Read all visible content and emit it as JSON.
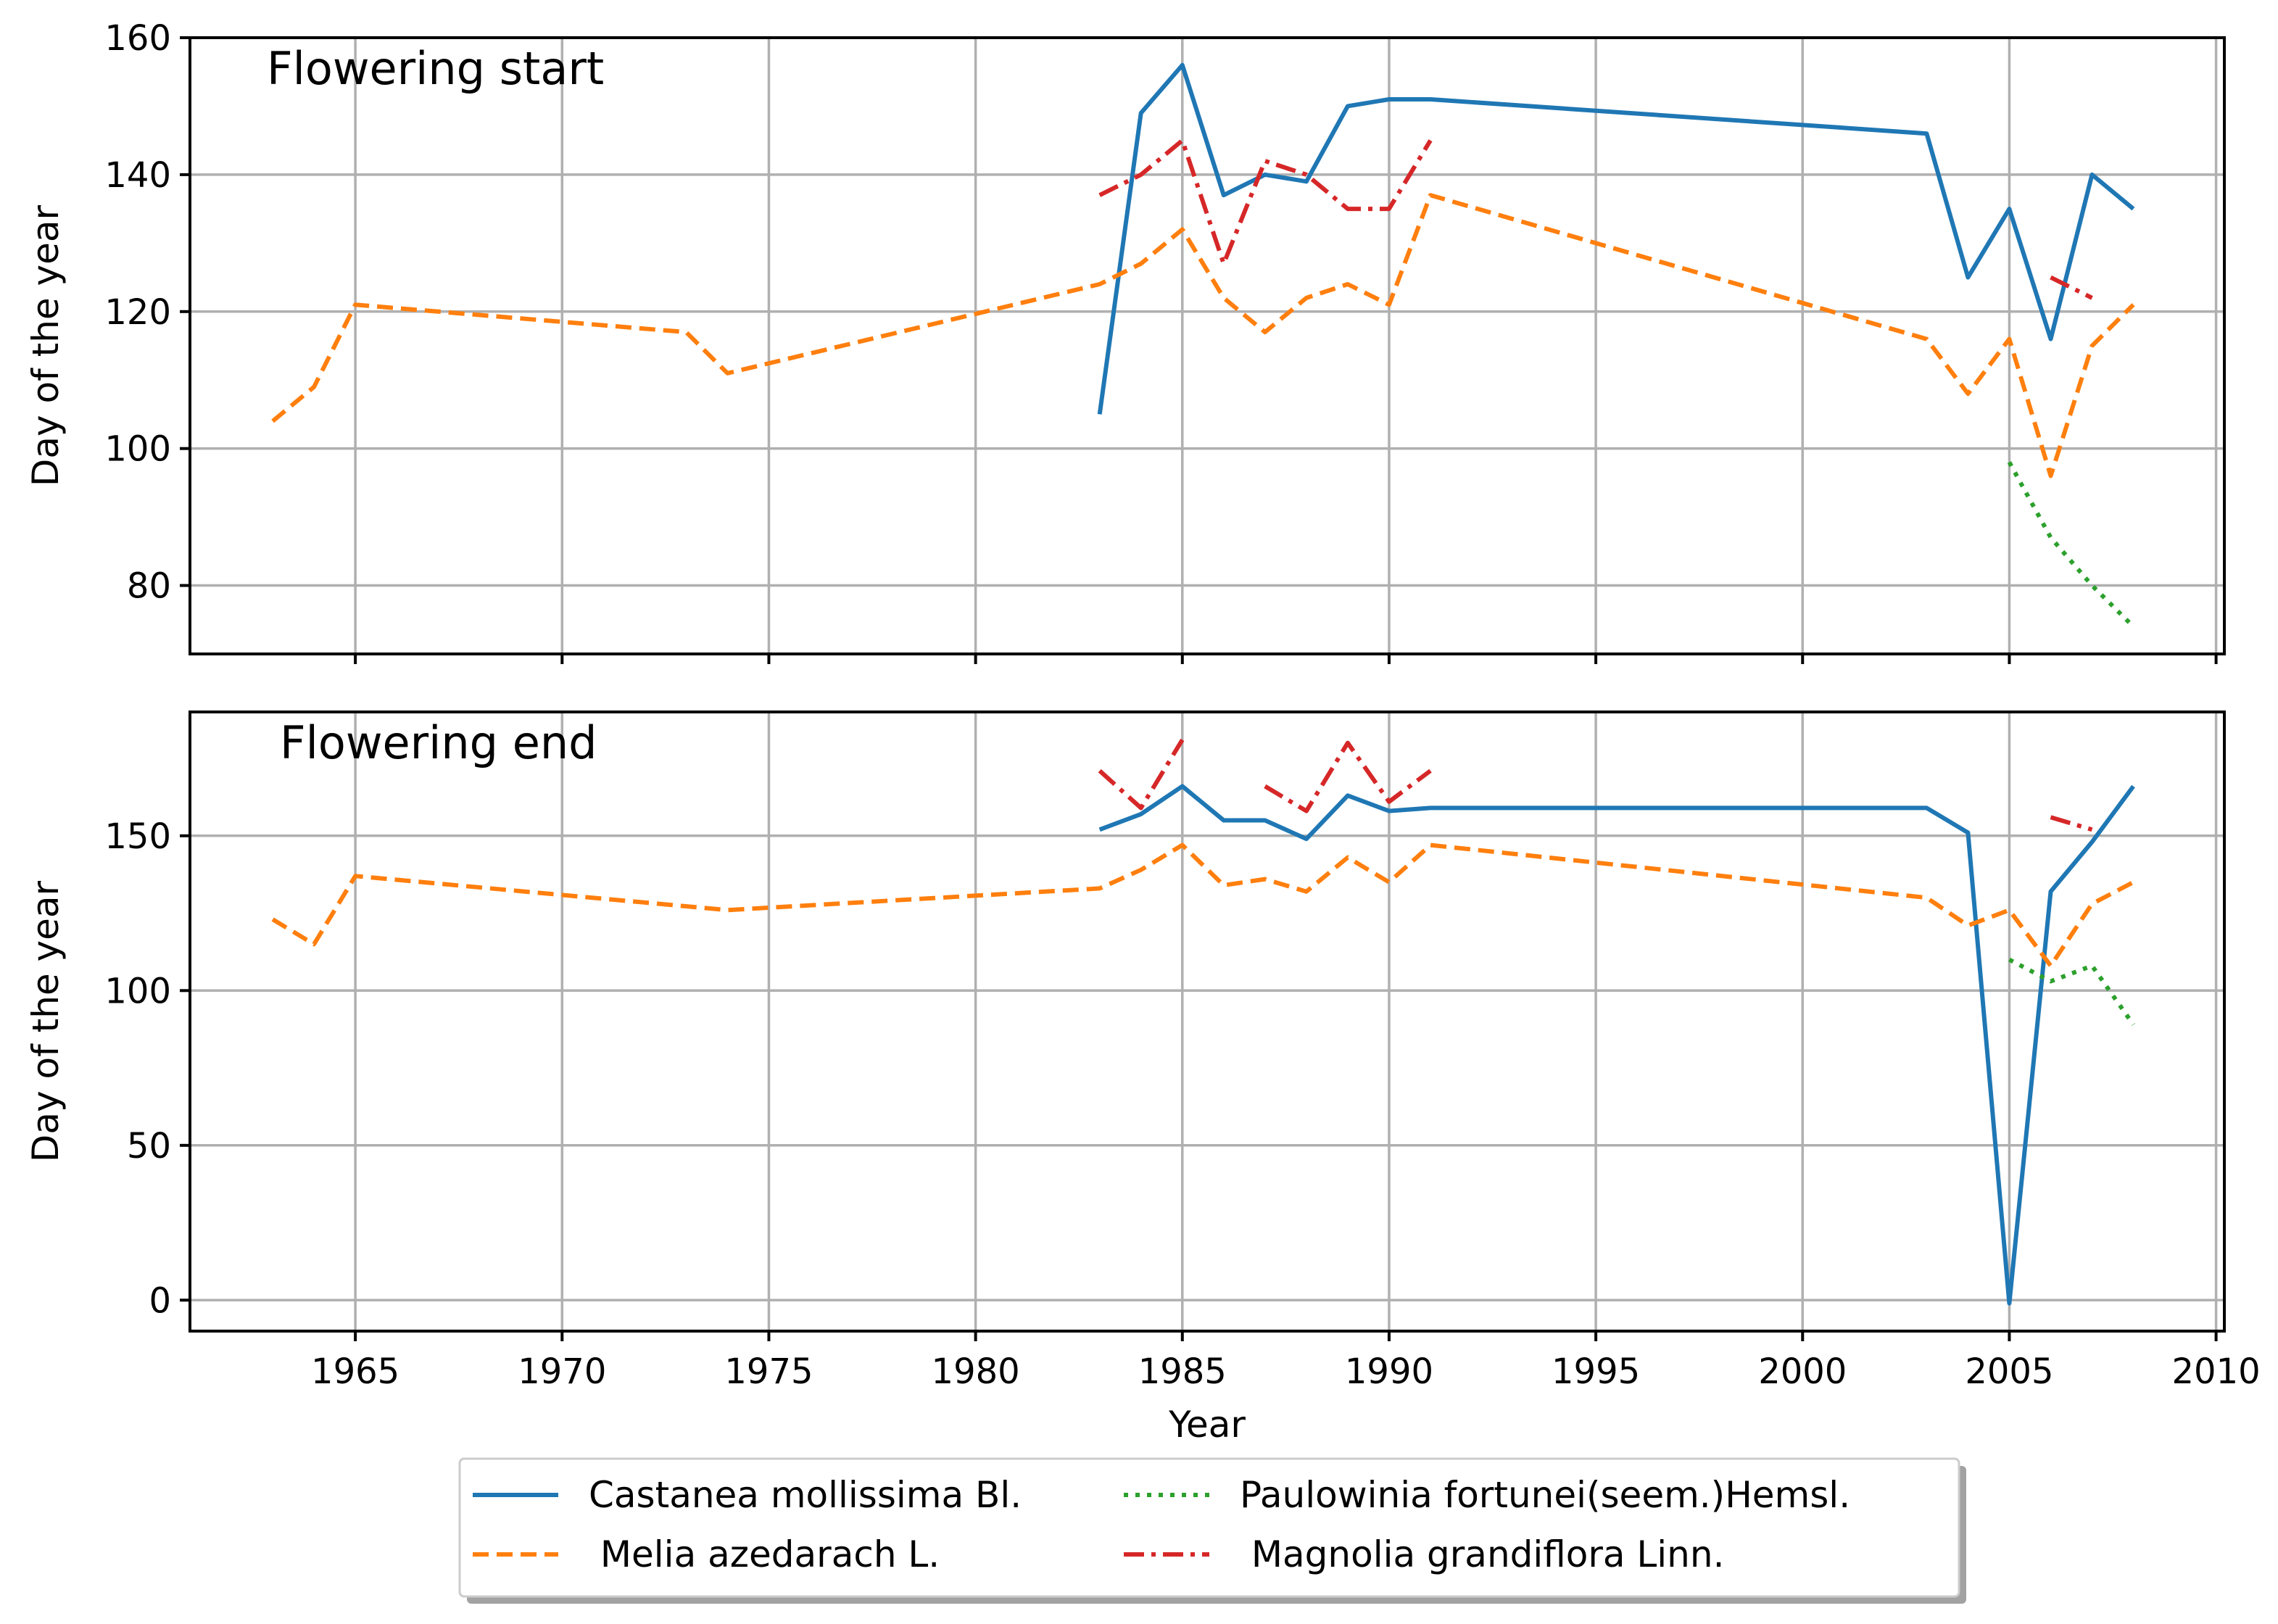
{
  "chart_data": [
    {
      "type": "line",
      "title": "Flowering start",
      "xlabel": "",
      "ylabel": "Day of the year",
      "xlim": [
        1961,
        2010.2
      ],
      "ylim": [
        70,
        160
      ],
      "xticks": [
        1965,
        1970,
        1975,
        1980,
        1985,
        1990,
        1995,
        2000,
        2005,
        2010
      ],
      "yticks": [
        80,
        100,
        120,
        140,
        160
      ],
      "grid": true,
      "series": [
        {
          "name": "Castanea mollissima Bl.",
          "segments": [
            {
              "x": [
                1983,
                1984,
                1985,
                1986,
                1987,
                1988,
                1989,
                1990,
                1991,
                2003,
                2004,
                2005,
                2006,
                2007,
                2008
              ],
              "y": [
                105,
                149,
                156,
                137,
                140,
                139,
                150,
                151,
                151,
                146,
                125,
                135,
                116,
                140,
                135
              ]
            }
          ]
        },
        {
          "name": "Melia azedarach L.",
          "segments": [
            {
              "x": [
                1963,
                1964,
                1965,
                1973,
                1974,
                1983,
                1984,
                1985,
                1986,
                1987,
                1988,
                1989,
                1990,
                1991,
                2003,
                2004,
                2005,
                2006,
                2007,
                2008
              ],
              "y": [
                104,
                109,
                121,
                117,
                111,
                124,
                127,
                132,
                122,
                117,
                122,
                124,
                121,
                137,
                116,
                108,
                116,
                96,
                115,
                121
              ]
            }
          ]
        },
        {
          "name": "Paulowinia fortunei(seem.)Hemsl.",
          "segments": [
            {
              "x": [
                2005,
                2006,
                2007,
                2008
              ],
              "y": [
                98,
                87,
                80,
                74
              ]
            }
          ]
        },
        {
          "name": "Magnolia grandiflora Linn.",
          "segments": [
            {
              "x": [
                1983,
                1984,
                1985,
                1986,
                1987,
                1988,
                1989,
                1990,
                1991
              ],
              "y": [
                137,
                140,
                145,
                127,
                142,
                140,
                135,
                135,
                145
              ]
            },
            {
              "x": [
                2006,
                2007
              ],
              "y": [
                125,
                122
              ]
            }
          ]
        }
      ]
    },
    {
      "type": "line",
      "title": "Flowering end",
      "xlabel": "Year",
      "ylabel": "Day of the year",
      "xlim": [
        1961,
        2010.2
      ],
      "ylim": [
        -10,
        190
      ],
      "xticks": [
        1965,
        1970,
        1975,
        1980,
        1985,
        1990,
        1995,
        2000,
        2005,
        2010
      ],
      "yticks": [
        0,
        50,
        100,
        150
      ],
      "grid": true,
      "series": [
        {
          "name": "Castanea mollissima Bl.",
          "segments": [
            {
              "x": [
                1983,
                1984,
                1985,
                1986,
                1987,
                1988,
                1989,
                1990,
                1991,
                2003,
                2004,
                2005,
                2006,
                2007,
                2008
              ],
              "y": [
                152,
                157,
                166,
                155,
                155,
                149,
                163,
                158,
                159,
                159,
                151,
                -1,
                132,
                148,
                166
              ]
            }
          ]
        },
        {
          "name": "Melia azedarach L.",
          "segments": [
            {
              "x": [
                1963,
                1964,
                1965,
                1974,
                1983,
                1984,
                1985,
                1986,
                1987,
                1988,
                1989,
                1990,
                1991,
                2003,
                2004,
                2005,
                2006,
                2007,
                2008
              ],
              "y": [
                123,
                115,
                137,
                126,
                133,
                139,
                147,
                134,
                136,
                132,
                143,
                135,
                147,
                130,
                121,
                126,
                108,
                128,
                135
              ]
            }
          ]
        },
        {
          "name": "Paulowinia fortunei(seem.)Hemsl.",
          "segments": [
            {
              "x": [
                2005,
                2006,
                2007,
                2008
              ],
              "y": [
                110,
                103,
                108,
                89
              ]
            }
          ]
        },
        {
          "name": "Magnolia grandiflora Linn.",
          "segments": [
            {
              "x": [
                1983,
                1984,
                1985
              ],
              "y": [
                171,
                159,
                181
              ]
            },
            {
              "x": [
                1987,
                1988,
                1989,
                1990,
                1991
              ],
              "y": [
                166,
                158,
                180,
                161,
                171
              ]
            },
            {
              "x": [
                2006,
                2007
              ],
              "y": [
                156,
                152
              ]
            }
          ]
        }
      ]
    }
  ],
  "legend": {
    "placement": "bottom-center",
    "ncol": 2,
    "entries": [
      {
        "label": "Castanea mollissima Bl.",
        "color": "#1f77b4",
        "style": "solid"
      },
      {
        "label": " Melia azedarach L.",
        "color": "#ff7f0e",
        "style": "dashed"
      },
      {
        "label": "Paulowinia fortunei(seem.)Hemsl.",
        "color": "#2ca02c",
        "style": "dotted"
      },
      {
        "label": " Magnolia grandiflora Linn.",
        "color": "#d62728",
        "style": "dashdot"
      }
    ]
  }
}
